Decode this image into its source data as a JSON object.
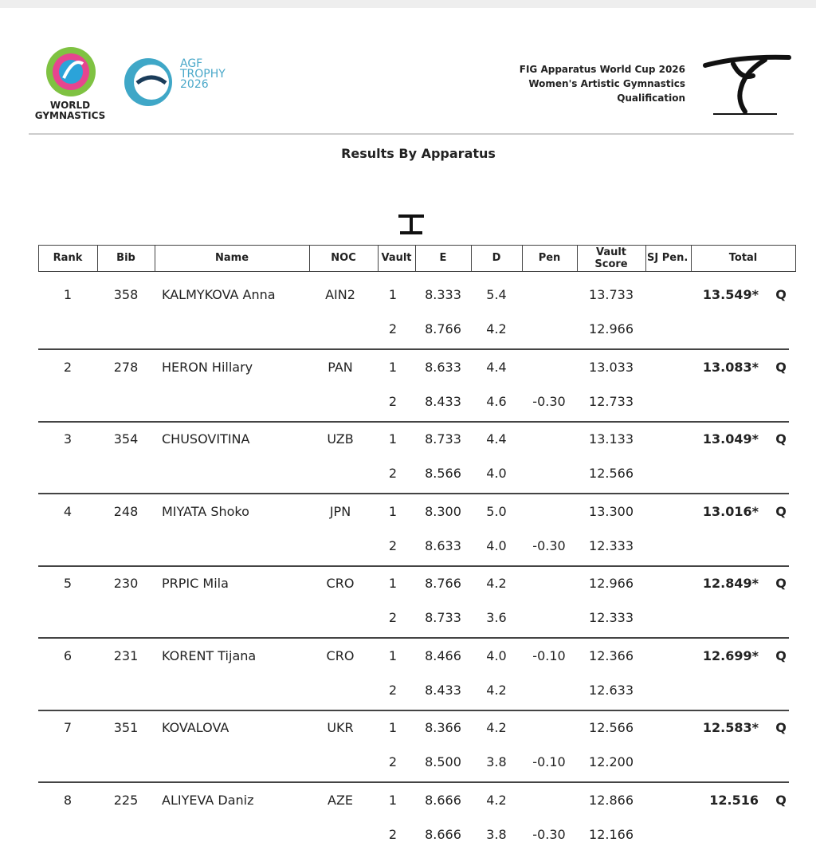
{
  "header": {
    "logo_world": [
      "WORLD",
      "GYMNASTICS"
    ],
    "logo_agf": [
      "AGF",
      "TROPHY",
      "2026"
    ],
    "event": [
      "FIG Apparatus World Cup 2026",
      "Women's Artistic Gymnastics",
      "Qualification"
    ]
  },
  "title": "Results By Apparatus",
  "table": {
    "columns": [
      "Rank",
      "Bib",
      "Name",
      "NOC",
      "Vault",
      "E",
      "D",
      "Pen",
      "Vault Score",
      "SJ Pen.",
      "Total"
    ],
    "rows": [
      {
        "cells": [
          "1",
          "358",
          "KALMYKOVA Anna",
          "AIN2"
        ],
        "vaults": [
          [
            "1",
            "8.333",
            "5.4",
            null,
            "13.733"
          ],
          [
            "2",
            "8.766",
            "4.2",
            null,
            "12.966"
          ]
        ],
        "total": "13.549*",
        "qual": "Q"
      },
      {
        "cells": [
          "2",
          "278",
          "HERON Hillary",
          "PAN"
        ],
        "vaults": [
          [
            "1",
            "8.633",
            "4.4",
            null,
            "13.033"
          ],
          [
            "2",
            "8.433",
            "4.6",
            "-0.30",
            "12.733"
          ]
        ],
        "total": "13.083*",
        "qual": "Q"
      },
      {
        "cells": [
          "3",
          "354",
          "CHUSOVITINA",
          "UZB"
        ],
        "vaults": [
          [
            "1",
            "8.733",
            "4.4",
            null,
            "13.133"
          ],
          [
            "2",
            "8.566",
            "4.0",
            null,
            "12.566"
          ]
        ],
        "total": "13.049*",
        "qual": "Q"
      },
      {
        "cells": [
          "4",
          "248",
          "MIYATA Shoko",
          "JPN"
        ],
        "vaults": [
          [
            "1",
            "8.300",
            "5.0",
            null,
            "13.300"
          ],
          [
            "2",
            "8.633",
            "4.0",
            "-0.30",
            "12.333"
          ]
        ],
        "total": "13.016*",
        "qual": "Q"
      },
      {
        "cells": [
          "5",
          "230",
          "PRPIC Mila",
          "CRO"
        ],
        "vaults": [
          [
            "1",
            "8.766",
            "4.2",
            null,
            "12.966"
          ],
          [
            "2",
            "8.733",
            "3.6",
            null,
            "12.333"
          ]
        ],
        "total": "12.849*",
        "qual": "Q"
      },
      {
        "cells": [
          "6",
          "231",
          "KORENT Tijana",
          "CRO"
        ],
        "vaults": [
          [
            "1",
            "8.466",
            "4.0",
            "-0.10",
            "12.366"
          ],
          [
            "2",
            "8.433",
            "4.2",
            null,
            "12.633"
          ]
        ],
        "total": "12.699*",
        "qual": "Q"
      },
      {
        "cells": [
          "7",
          "351",
          "KOVALOVA",
          "UKR"
        ],
        "vaults": [
          [
            "1",
            "8.366",
            "4.2",
            null,
            "12.566"
          ],
          [
            "2",
            "8.500",
            "3.8",
            "-0.10",
            "12.200"
          ]
        ],
        "total": "12.583*",
        "qual": "Q"
      },
      {
        "cells": [
          "8",
          "225",
          "ALIYEVA Daniz",
          "AZE"
        ],
        "vaults": [
          [
            "1",
            "8.666",
            "4.2",
            null,
            "12.866"
          ],
          [
            "2",
            "8.666",
            "3.8",
            "-0.30",
            "12.166"
          ]
        ],
        "total": "12.516",
        "qual": "Q"
      }
    ]
  }
}
